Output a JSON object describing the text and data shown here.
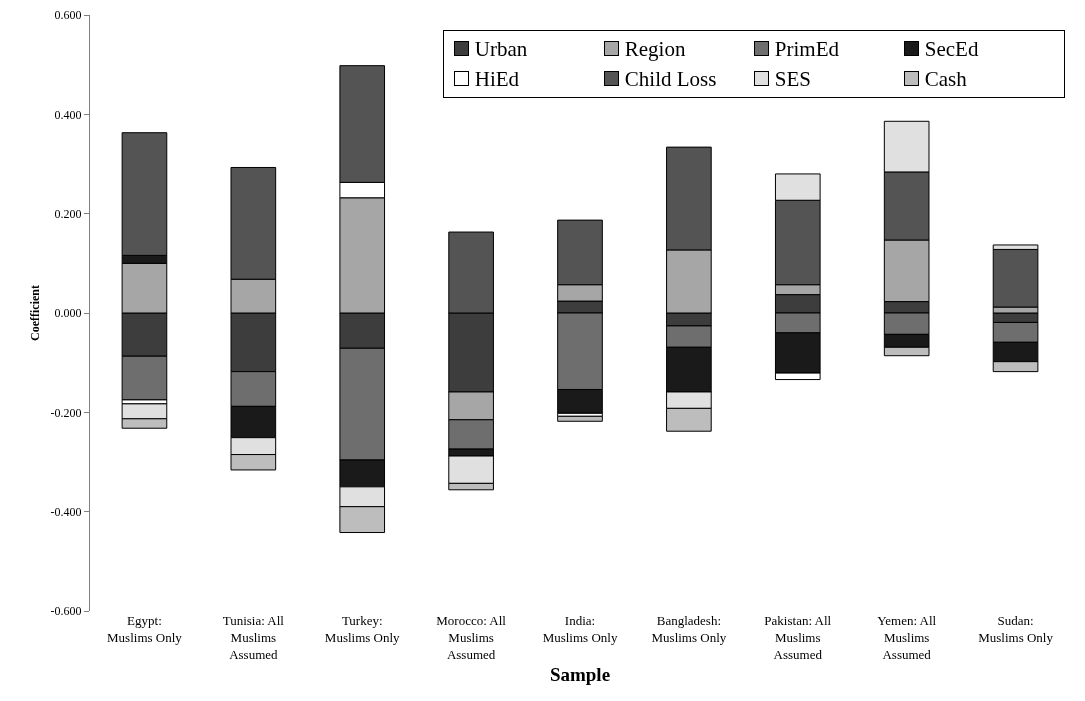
{
  "chart_data": {
    "type": "bar",
    "stacked": true,
    "xlabel": "Sample",
    "ylabel": "Coefficient",
    "categories": [
      "Egypt: Muslims Only",
      "Tunisia: All Muslims Assumed",
      "Turkey: Muslims Only",
      "Morocco: All Muslims Assumed",
      "India: Muslims Only",
      "Bangladesh: Muslims Only",
      "Pakistan: All Muslims Assumed",
      "Yemen: All Muslims Assumed",
      "Sudan: Muslims Only"
    ],
    "series": [
      {
        "name": "Urban",
        "color": "#3d3d3d",
        "values": [
          -0.087,
          -0.118,
          -0.071,
          -0.159,
          0.024,
          -0.026,
          0.037,
          0.023,
          -0.019
        ]
      },
      {
        "name": "Region",
        "color": "#a6a6a6",
        "values": [
          0.1,
          0.068,
          0.232,
          -0.056,
          0.033,
          0.127,
          0.02,
          0.124,
          0.012
        ]
      },
      {
        "name": "PrimEd",
        "color": "#6e6e6e",
        "values": [
          -0.088,
          -0.07,
          -0.225,
          -0.059,
          -0.154,
          -0.043,
          -0.04,
          -0.043,
          -0.04
        ]
      },
      {
        "name": "SecEd",
        "color": "#1a1a1a",
        "values": [
          0.016,
          -0.063,
          -0.054,
          -0.014,
          -0.048,
          -0.09,
          -0.081,
          -0.026,
          -0.039
        ]
      },
      {
        "name": "HiEd",
        "color": "#ffffff",
        "values": [
          -0.008,
          null,
          0.031,
          null,
          -0.006,
          null,
          -0.013,
          null,
          null
        ]
      },
      {
        "name": "Child Loss",
        "color": "#545454",
        "values": [
          0.247,
          0.225,
          0.235,
          0.163,
          0.13,
          0.207,
          0.17,
          0.137,
          0.116
        ]
      },
      {
        "name": "SES",
        "color": "#e0e0e0",
        "values": [
          -0.03,
          -0.034,
          -0.04,
          -0.055,
          null,
          -0.033,
          0.053,
          0.102,
          0.009
        ]
      },
      {
        "name": "Cash",
        "color": "#bdbdbd",
        "values": [
          -0.019,
          -0.031,
          -0.052,
          -0.013,
          -0.01,
          -0.046,
          null,
          -0.017,
          -0.02
        ]
      }
    ],
    "ylim": [
      -0.6,
      0.6
    ],
    "yticks": [
      {
        "value": -0.6,
        "label": "-0.600"
      },
      {
        "value": -0.4,
        "label": "-0.400"
      },
      {
        "value": -0.2,
        "label": "-0.200"
      },
      {
        "value": 0,
        "label": "0.000"
      },
      {
        "value": 0.2,
        "label": "0.200"
      },
      {
        "value": 0.4,
        "label": "0.400"
      },
      {
        "value": 0.6,
        "label": "0.600"
      }
    ],
    "grid": false,
    "legend": "top right"
  }
}
